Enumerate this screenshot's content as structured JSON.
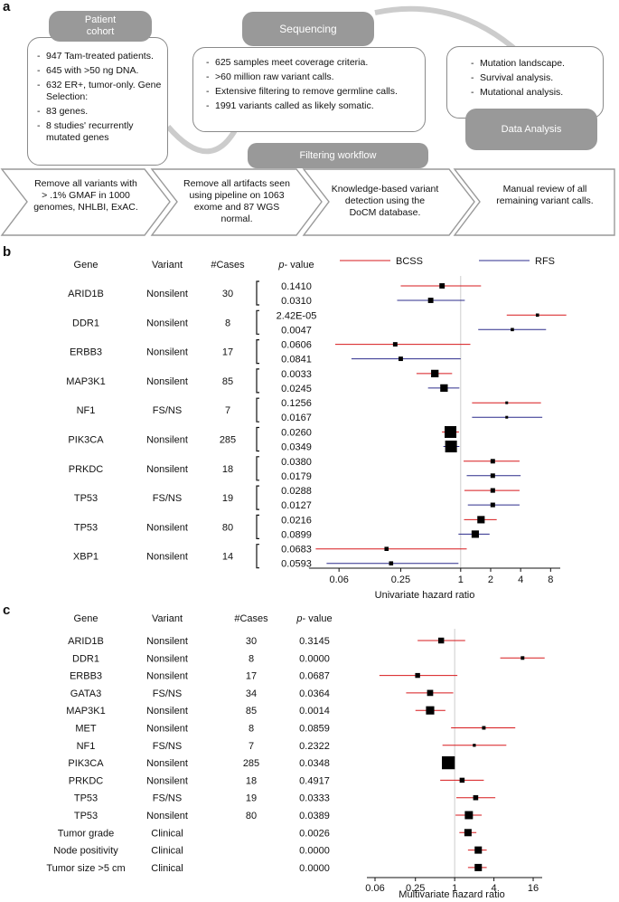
{
  "panels": {
    "a": "a",
    "b": "b",
    "c": "c"
  },
  "panel_a": {
    "patient_cohort": {
      "title": "Patient\ncohort",
      "items": [
        "947 Tam-treated patients.",
        "645 with >50 ng DNA.",
        "632 ER+, tumor-only. Gene Selection:",
        "83 genes.",
        "8 studies' recurrently mutated genes"
      ]
    },
    "sequencing": {
      "title": "Sequencing",
      "items": [
        "625 samples meet coverage criteria.",
        ">60 million raw variant calls.",
        "Extensive filtering to remove germline calls.",
        "1991 variants called as likely somatic."
      ]
    },
    "data_analysis": {
      "title": "Data Analysis",
      "items": [
        "Mutation landscape.",
        "Survival analysis.",
        "Mutational analysis."
      ]
    },
    "filtering_workflow": "Filtering workflow",
    "steps": [
      "Remove all variants with > .1% GMAF in 1000 genomes, NHLBI, ExAC.",
      "Remove all artifacts seen using pipeline on 1063 exome and 87 WGS normal.",
      "Knowledge-based variant detection using the DoCM database.",
      "Manual review of all remaining variant calls."
    ]
  },
  "colors": {
    "bcss": "#d7191c",
    "rfs": "#2c2c8c",
    "marker": "#000000",
    "refline": "#cccccc",
    "box_gray": "#999999"
  },
  "chart_data": [
    {
      "type": "forest",
      "panel": "b",
      "headers": {
        "gene": "Gene",
        "variant": "Variant",
        "cases": "#Cases",
        "p_italic": "p",
        "p_rest": "- value"
      },
      "legend": [
        {
          "name": "BCSS",
          "color": "#d7191c"
        },
        {
          "name": "RFS",
          "color": "#2c2c8c"
        }
      ],
      "xlabel": "Univariate hazard ratio",
      "xscale": "log2",
      "xlim": [
        0.03,
        10
      ],
      "xticks": [
        0.06,
        0.25,
        1,
        2,
        4,
        8
      ],
      "xtick_labels": [
        "0.06",
        "0.25",
        "1",
        "2",
        "4",
        "8"
      ],
      "refline": 1,
      "rows": [
        {
          "gene": "ARID1B",
          "variant": "Nonsilent",
          "cases": "30",
          "bcss": {
            "p": "0.1410",
            "hr": 0.65,
            "lo": 0.25,
            "hi": 1.6
          },
          "rfs": {
            "p": "0.0310",
            "hr": 0.5,
            "lo": 0.23,
            "hi": 1.1
          }
        },
        {
          "gene": "DDR1",
          "variant": "Nonsilent",
          "cases": "8",
          "bcss": {
            "p": "2.42E-05",
            "hr": 5.9,
            "lo": 2.9,
            "hi": 11.5
          },
          "rfs": {
            "p": "0.0047",
            "hr": 3.3,
            "lo": 1.5,
            "hi": 7.2
          }
        },
        {
          "gene": "ERBB3",
          "variant": "Nonsilent",
          "cases": "17",
          "bcss": {
            "p": "0.0606",
            "hr": 0.22,
            "lo": 0.055,
            "hi": 1.25
          },
          "rfs": {
            "p": "0.0841",
            "hr": 0.25,
            "lo": 0.08,
            "hi": 1.0
          }
        },
        {
          "gene": "MAP3K1",
          "variant": "Nonsilent",
          "cases": "85",
          "bcss": {
            "p": "0.0033",
            "hr": 0.55,
            "lo": 0.36,
            "hi": 0.82
          },
          "rfs": {
            "p": "0.0245",
            "hr": 0.68,
            "lo": 0.47,
            "hi": 0.97
          }
        },
        {
          "gene": "NF1",
          "variant": "FS/NS",
          "cases": "7",
          "bcss": {
            "p": "0.1256",
            "hr": 2.9,
            "lo": 1.3,
            "hi": 6.4
          },
          "rfs": {
            "p": "0.0167",
            "hr": 2.9,
            "lo": 1.3,
            "hi": 6.6
          }
        },
        {
          "gene": "PIK3CA",
          "variant": "Nonsilent",
          "cases": "285",
          "bcss": {
            "p": "0.0260",
            "hr": 0.79,
            "lo": 0.65,
            "hi": 0.96
          },
          "rfs": {
            "p": "0.0349",
            "hr": 0.8,
            "lo": 0.67,
            "hi": 0.97
          }
        },
        {
          "gene": "PRKDC",
          "variant": "Nonsilent",
          "cases": "18",
          "bcss": {
            "p": "0.0380",
            "hr": 2.1,
            "lo": 1.07,
            "hi": 3.9
          },
          "rfs": {
            "p": "0.0179",
            "hr": 2.1,
            "lo": 1.15,
            "hi": 4.0
          }
        },
        {
          "gene": "TP53",
          "variant": "FS/NS",
          "cases": "19",
          "bcss": {
            "p": "0.0288",
            "hr": 2.1,
            "lo": 1.09,
            "hi": 3.9
          },
          "rfs": {
            "p": "0.0127",
            "hr": 2.1,
            "lo": 1.18,
            "hi": 3.9
          }
        },
        {
          "gene": "TP53",
          "variant": "Nonsilent",
          "cases": "80",
          "bcss": {
            "p": "0.0216",
            "hr": 1.6,
            "lo": 1.08,
            "hi": 2.3
          },
          "rfs": {
            "p": "0.0899",
            "hr": 1.4,
            "lo": 0.95,
            "hi": 1.95
          }
        },
        {
          "gene": "XBP1",
          "variant": "Nonsilent",
          "cases": "14",
          "bcss": {
            "p": "0.0683",
            "hr": 0.18,
            "lo": 0.035,
            "hi": 1.15
          },
          "rfs": {
            "p": "0.0593",
            "hr": 0.2,
            "lo": 0.045,
            "hi": 0.95
          }
        }
      ]
    },
    {
      "type": "forest",
      "panel": "c",
      "headers": {
        "gene": "Gene",
        "variant": "Variant",
        "cases": "#Cases",
        "p_italic": "p",
        "p_rest": "- value"
      },
      "xlabel": "Multivariate hazard ratio",
      "xscale": "log2",
      "xlim": [
        0.045,
        22
      ],
      "xticks": [
        0.06,
        0.25,
        1,
        4,
        16
      ],
      "xtick_labels": [
        "0.06",
        "0.25",
        "1",
        "4",
        "16"
      ],
      "refline": 1,
      "rows": [
        {
          "gene": "ARID1B",
          "variant": "Nonsilent",
          "cases": "30",
          "p": "0.3145",
          "hr": 0.62,
          "lo": 0.27,
          "hi": 1.45
        },
        {
          "gene": "DDR1",
          "variant": "Nonsilent",
          "cases": "8",
          "p": "0.0000",
          "hr": 11,
          "lo": 5.0,
          "hi": 24
        },
        {
          "gene": "ERBB3",
          "variant": "Nonsilent",
          "cases": "17",
          "p": "0.0687",
          "hr": 0.27,
          "lo": 0.07,
          "hi": 1.1
        },
        {
          "gene": "GATA3",
          "variant": "FS/NS",
          "cases": "34",
          "p": "0.0364",
          "hr": 0.42,
          "lo": 0.18,
          "hi": 0.95
        },
        {
          "gene": "MAP3K1",
          "variant": "Nonsilent",
          "cases": "85",
          "p": "0.0014",
          "hr": 0.42,
          "lo": 0.25,
          "hi": 0.72
        },
        {
          "gene": "MET",
          "variant": "Nonsilent",
          "cases": "8",
          "p": "0.0859",
          "hr": 2.8,
          "lo": 0.88,
          "hi": 8.5
        },
        {
          "gene": "NF1",
          "variant": "FS/NS",
          "cases": "7",
          "p": "0.2322",
          "hr": 2.0,
          "lo": 0.65,
          "hi": 6.2
        },
        {
          "gene": "PIK3CA",
          "variant": "Nonsilent",
          "cases": "285",
          "p": "0.0348",
          "hr": 0.8,
          "lo": 0.65,
          "hi": 0.98
        },
        {
          "gene": "PRKDC",
          "variant": "Nonsilent",
          "cases": "18",
          "p": "0.4917",
          "hr": 1.3,
          "lo": 0.6,
          "hi": 2.8
        },
        {
          "gene": "TP53",
          "variant": "FS/NS",
          "cases": "19",
          "p": "0.0333",
          "hr": 2.1,
          "lo": 1.06,
          "hi": 4.2
        },
        {
          "gene": "TP53",
          "variant": "Nonsilent",
          "cases": "80",
          "p": "0.0389",
          "hr": 1.65,
          "lo": 1.03,
          "hi": 2.6
        },
        {
          "gene": "Tumor grade",
          "variant": "Clinical",
          "cases": "",
          "p": "0.0026",
          "hr": 1.6,
          "lo": 1.18,
          "hi": 2.15
        },
        {
          "gene": "Node positivity",
          "variant": "Clinical",
          "cases": "",
          "p": "0.0000",
          "hr": 2.3,
          "lo": 1.6,
          "hi": 3.1
        },
        {
          "gene": "Tumor size >5 cm",
          "variant": "Clinical",
          "cases": "",
          "p": "0.0000",
          "hr": 2.3,
          "lo": 1.6,
          "hi": 3.1
        }
      ]
    }
  ]
}
